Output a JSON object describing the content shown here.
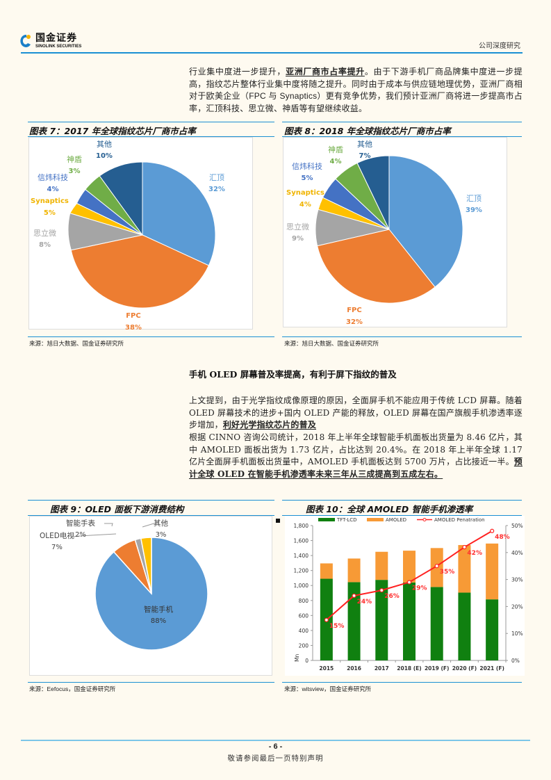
{
  "header": {
    "logo_cn": "国金证券",
    "logo_en": "SINOLINK SECURITIES",
    "report_type": "公司深度研究"
  },
  "intro": {
    "part1": "行业集中度进一步提升，",
    "part1_bold": "亚洲厂商市占率提升",
    "part2": "。由于下游手机厂商品牌集中度进一步提高，指纹芯片整体行业集中度将随之提升。同时由于成本与供应链地理优势，亚洲厂商相对于欧美企业（",
    "part2_latin": "FPC 与 Synaptics",
    "part3": "）更有竞争优势，我们预计亚洲厂商将进一步提高市占率，汇顶科技、思立微、神盾等有望继续收益。"
  },
  "figures": {
    "fig7": {
      "title": "图表 7：2017 年全球指纹芯片厂商市占率",
      "source": "来源：旭日大数据、国金证券研究所"
    },
    "fig8": {
      "title": "图表 8：2018 年全球指纹芯片厂商市占率",
      "source": "来源：旭日大数据、国金证券研究所"
    },
    "fig9": {
      "title": "图表 9：OLED 面板下游消费结构",
      "source_prefix": "来源：",
      "source_latin": "Eefocus",
      "source_suffix": "，国金证券研究所"
    },
    "fig10": {
      "title": "图表 10：全球 AMOLED 智能手机渗透率",
      "source_prefix": "来源：",
      "source_latin": "witsview",
      "source_suffix": "，国金证券研究所"
    }
  },
  "section": {
    "title": "手机 OLED 屏幕普及率提高，有利于屏下指纹的普及",
    "p1_text": "上文提到，由于光学指纹成像原理的原因，全面屏手机不能应用于传统 LCD 屏幕。随着 OLED 屏幕技术的进步+国内 OLED 产能的释放，OLED 屏幕在国产旗舰手机渗透率逐步增加，",
    "p1_bold": "利好光学指纹芯片的普及",
    "p2_text": "根据 CINNO 咨询公司统计，2018 年上半年全球智能手机面板出货量为 8.46 亿片，其中 AMOLED 面板出货为 1.73 亿片，占比达到 20.4%。在 2018 年上半年全球 1.17 亿片全面屏手机面板出货量中，AMOLED 手机面板达到 5700 万片，占比接近一半。",
    "p2_bold": "预计全球 OLED 在智能手机渗透率未来三年从三成提高到五成左右。"
  },
  "footer": {
    "page_number": "- 6 -",
    "disclaimer": "敬请参阅最后一页特别声明"
  },
  "chart_data": [
    {
      "type": "pie",
      "title": "2017 年全球指纹芯片厂商市占率",
      "categories": [
        "汇顶",
        "FPC",
        "思立微",
        "Synaptics",
        "信炜科技",
        "神盾",
        "其他"
      ],
      "values": [
        32,
        38,
        8,
        5,
        4,
        3,
        10
      ],
      "colors": [
        "#5b9bd5",
        "#ed7d31",
        "#a5a5a5",
        "#ffc000",
        "#4472c4",
        "#70ad47",
        "#255e91"
      ],
      "unit": "%"
    },
    {
      "type": "pie",
      "title": "2018 年全球指纹芯片厂商市占率",
      "categories": [
        "汇顶",
        "FPC",
        "思立微",
        "Synaptics",
        "信炜科技",
        "神盾",
        "其他"
      ],
      "values": [
        39,
        32,
        9,
        4,
        5,
        4,
        7
      ],
      "colors": [
        "#5b9bd5",
        "#ed7d31",
        "#a5a5a5",
        "#ffc000",
        "#4472c4",
        "#70ad47",
        "#255e91"
      ],
      "unit": "%"
    },
    {
      "type": "pie",
      "title": "OLED 面板下游消费结构",
      "categories": [
        "智能手机",
        "OLED电视",
        "智能手表",
        "其他"
      ],
      "values": [
        88,
        7,
        2,
        3
      ],
      "colors": [
        "#5b9bd5",
        "#ed7d31",
        "#a5a5a5",
        "#ffc000"
      ],
      "unit": "%"
    },
    {
      "type": "bar",
      "stacked": true,
      "title": "全球 AMOLED 智能手机渗透率",
      "categories": [
        "2015",
        "2016",
        "2017",
        "2018 (E)",
        "2019 (F)",
        "2020 (F)",
        "2021 (F)"
      ],
      "series": [
        {
          "name": "TFT-LCD",
          "color": "#108010",
          "values": [
            1090,
            1045,
            1075,
            1040,
            980,
            905,
            815
          ]
        },
        {
          "name": "AMOLED",
          "color": "#f79a36",
          "values": [
            205,
            315,
            375,
            425,
            520,
            635,
            745
          ]
        },
        {
          "name": "AMOLED Penatration",
          "color": "#ff2020",
          "type": "line",
          "axis": "right",
          "values": [
            15,
            24,
            26,
            29,
            35,
            42,
            48
          ],
          "labels": [
            "15%",
            "24%",
            "26%",
            "29%",
            "35%",
            "42%",
            "48%"
          ]
        }
      ],
      "ylabel": "Mn",
      "ylim": [
        0,
        1800
      ],
      "yticks": [
        "0",
        "200",
        "400",
        "600",
        "800",
        "1,000",
        "1,200",
        "1,400",
        "1,600",
        "1,800"
      ],
      "y2lim": [
        0,
        50
      ],
      "y2ticks": [
        "0%",
        "10%",
        "20%",
        "30%",
        "40%",
        "50%"
      ],
      "legend_position": "top"
    }
  ]
}
